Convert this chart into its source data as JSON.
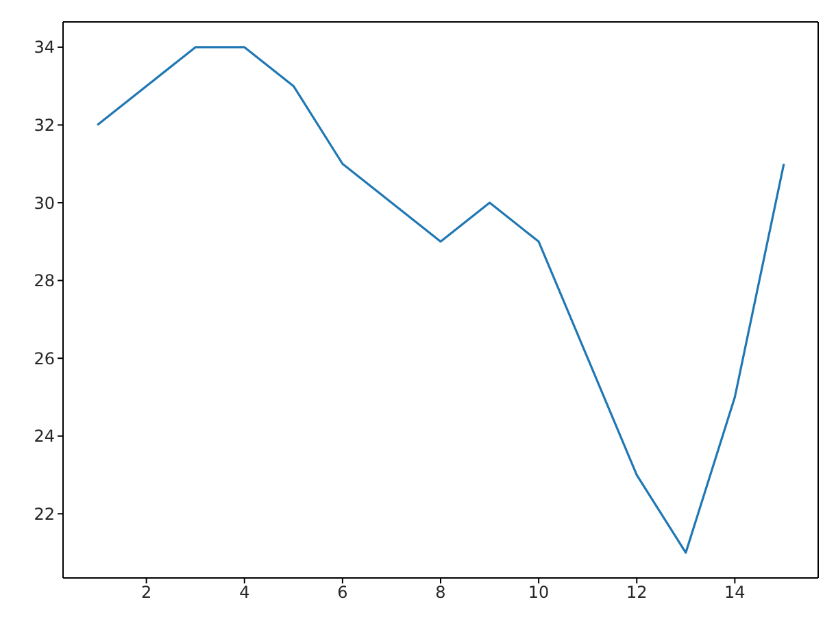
{
  "chart_data": {
    "type": "line",
    "x": [
      1,
      2,
      3,
      4,
      5,
      6,
      7,
      8,
      9,
      10,
      11,
      12,
      13,
      14,
      15
    ],
    "series": [
      {
        "color": "#1f77b4",
        "values": [
          32,
          33,
          34,
          34,
          33,
          31,
          30,
          29,
          30,
          29,
          26,
          23,
          21,
          25,
          31
        ]
      }
    ],
    "xlim": [
      0.3,
      15.7
    ],
    "xticks": [
      2,
      4,
      6,
      8,
      10,
      12,
      14
    ],
    "ylim": [
      20.35,
      34.65
    ],
    "yticks": [
      22,
      24,
      26,
      28,
      30,
      32,
      34
    ],
    "grid": false,
    "legend": false,
    "marker": "none",
    "line_style": "solid"
  }
}
